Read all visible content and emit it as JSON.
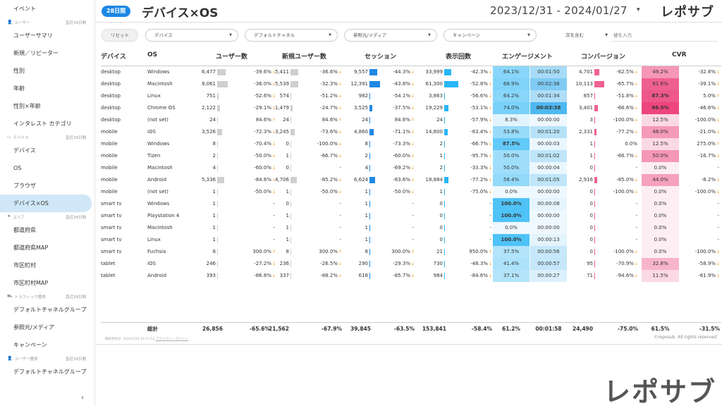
{
  "sidebar": {
    "items": [
      {
        "type": "item",
        "label": "イベント"
      },
      {
        "type": "group",
        "label": "ユーザー",
        "period": "直近28日間",
        "icon": "user-icon"
      },
      {
        "type": "item",
        "label": "ユーザーサマリ"
      },
      {
        "type": "item",
        "label": "新規／リピーター"
      },
      {
        "type": "item",
        "label": "性別"
      },
      {
        "type": "item",
        "label": "年齢"
      },
      {
        "type": "item",
        "label": "性別×年齢"
      },
      {
        "type": "item",
        "label": "インタレスト カテゴリ"
      },
      {
        "type": "group",
        "label": "デバイス",
        "period": "直近28日間",
        "icon": "monitor-icon"
      },
      {
        "type": "item",
        "label": "デバイス"
      },
      {
        "type": "item",
        "label": "OS"
      },
      {
        "type": "item",
        "label": "ブラウザ"
      },
      {
        "type": "item",
        "label": "デバイス×OS",
        "active": true
      },
      {
        "type": "group",
        "label": "エリア",
        "period": "直近28日間",
        "icon": "flag-icon"
      },
      {
        "type": "item",
        "label": "都道府県"
      },
      {
        "type": "item",
        "label": "都道府県MAP"
      },
      {
        "type": "item",
        "label": "市区町村"
      },
      {
        "type": "item",
        "label": "市区町村MAP"
      },
      {
        "type": "group",
        "label": "トラフィック獲得",
        "period": "直近28日間",
        "icon": "truck-icon"
      },
      {
        "type": "item",
        "label": "デフォルトチャネルグループ"
      },
      {
        "type": "item",
        "label": "参照元/メディア"
      },
      {
        "type": "item",
        "label": "キャンペーン"
      },
      {
        "type": "group",
        "label": "ユーザー獲得",
        "period": "直近28日間",
        "icon": "user-add-icon"
      },
      {
        "type": "item",
        "label": "デフォルトチャネルグループ"
      }
    ],
    "collapse_glyph": "‹"
  },
  "header": {
    "badge": "28日間",
    "title": "デバイス×OS",
    "date_range": "2023/12/31 - 2024/01/27",
    "date_caret": "▾",
    "logo": "レポサブ"
  },
  "filters": {
    "reset": "リセット",
    "dropdowns": [
      "デバイス",
      "デフォルトチャネル",
      "参照元/メディア",
      "キャンペーン"
    ],
    "contain": "次を含む",
    "input_placeholder": "値を入力"
  },
  "table": {
    "headers": [
      "デバイス",
      "OS",
      "ユーザー数",
      "新規ユーザー数",
      "セッション",
      "表示回数",
      "エンゲージメント",
      "コンバージョン",
      "CVR"
    ],
    "rows": [
      {
        "device": "desktop",
        "os": "Windows",
        "users": "6,477",
        "users_chg": "-39.6%",
        "new_users": "5,411",
        "new_chg": "-36.6%",
        "sessions": "9,557",
        "sess_chg": "-44.3%",
        "views": "33,999",
        "views_chg": "-42.3%",
        "eng_rate": "64.1%",
        "eng_time": "00:01:50",
        "conv": "4,701",
        "conv_chg": "-62.5%",
        "cvr": "49.2%",
        "cvr_chg": "-32.8%",
        "users_bar": 0.39,
        "new_bar": 0.35,
        "sess_bar": 0.4,
        "views_bar": 0.34,
        "conv_bar": 0.3,
        "eng_rate_lvl": 0.64,
        "eng_time_lvl": 0.45,
        "cvr_lvl": 0.5
      },
      {
        "device": "desktop",
        "os": "Macintosh",
        "users": "8,061",
        "users_chg": "-36.0%",
        "new_users": "5,539",
        "new_chg": "-32.3%",
        "sessions": "12,391",
        "sess_chg": "-43.8%",
        "views": "61,300",
        "views_chg": "-52.8%",
        "eng_rate": "68.9%",
        "eng_time": "00:02:36",
        "conv": "10,113",
        "conv_chg": "-65.7%",
        "cvr": "81.6%",
        "cvr_chg": "-39.1%",
        "users_bar": 0.5,
        "new_bar": 0.36,
        "sess_bar": 0.55,
        "views_bar": 0.7,
        "conv_bar": 0.65,
        "eng_rate_lvl": 0.69,
        "eng_time_lvl": 0.7,
        "cvr_lvl": 0.82
      },
      {
        "device": "desktop",
        "os": "Linux",
        "users": "751",
        "users_chg": "-52.6%",
        "new_users": "574",
        "new_chg": "-51.2%",
        "sessions": "982",
        "sess_chg": "-54.1%",
        "views": "3,863",
        "views_chg": "-56.6%",
        "eng_rate": "64.2%",
        "eng_time": "00:01:34",
        "conv": "857",
        "conv_chg": "-51.8%",
        "cvr": "87.3%",
        "cvr_chg": "5.0%",
        "users_bar": 0.05,
        "new_bar": 0.04,
        "sess_bar": 0.04,
        "views_bar": 0.04,
        "conv_bar": 0.05,
        "eng_rate_lvl": 0.64,
        "eng_time_lvl": 0.4,
        "cvr_lvl": 0.87
      },
      {
        "device": "desktop",
        "os": "Chrome OS",
        "users": "2,122",
        "users_chg": "-29.1%",
        "new_users": "1,479",
        "new_chg": "-24.7%",
        "sessions": "3,525",
        "sess_chg": "-37.5%",
        "views": "19,229",
        "views_chg": "-53.1%",
        "eng_rate": "74.0%",
        "eng_time": "00:03:38",
        "conv": "3,401",
        "conv_chg": "-66.6%",
        "cvr": "96.5%",
        "cvr_chg": "-46.6%",
        "users_bar": 0.13,
        "new_bar": 0.1,
        "sess_bar": 0.15,
        "views_bar": 0.22,
        "conv_bar": 0.22,
        "eng_rate_lvl": 0.74,
        "eng_time_lvl": 1.0,
        "cvr_lvl": 0.97
      },
      {
        "device": "desktop",
        "os": "(not set)",
        "users": "24",
        "users_chg": "84.6%",
        "new_users": "24",
        "new_chg": "84.6%",
        "sessions": "24",
        "sess_chg": "84.6%",
        "views": "24",
        "views_chg": "-57.9%",
        "eng_rate": "8.3%",
        "eng_time": "00:00:00",
        "conv": "3",
        "conv_chg": "-100.0%",
        "cvr": "12.5%",
        "cvr_chg": "-100.0%",
        "users_bar": 0.0,
        "new_bar": 0.0,
        "sess_bar": 0.0,
        "views_bar": 0.0,
        "conv_bar": 0.0,
        "eng_rate_lvl": 0.08,
        "eng_time_lvl": 0.0,
        "cvr_lvl": 0.12
      },
      {
        "device": "mobile",
        "os": "iOS",
        "users": "3,526",
        "users_chg": "-72.3%",
        "new_users": "3,245",
        "new_chg": "-73.6%",
        "sessions": "4,860",
        "sess_chg": "-71.1%",
        "views": "14,800",
        "views_chg": "-63.4%",
        "eng_rate": "53.8%",
        "eng_time": "00:01:20",
        "conv": "2,331",
        "conv_chg": "-77.2%",
        "cvr": "48.0%",
        "cvr_chg": "-21.0%",
        "users_bar": 0.22,
        "new_bar": 0.21,
        "sess_bar": 0.2,
        "views_bar": 0.17,
        "conv_bar": 0.15,
        "eng_rate_lvl": 0.54,
        "eng_time_lvl": 0.35,
        "cvr_lvl": 0.48
      },
      {
        "device": "mobile",
        "os": "Windows",
        "users": "8",
        "users_chg": "-70.4%",
        "new_users": "0",
        "new_chg": "-100.0%",
        "sessions": "8",
        "sess_chg": "-73.3%",
        "views": "2",
        "views_chg": "-66.7%",
        "eng_rate": "87.5%",
        "eng_time": "00:00:03",
        "conv": "1",
        "conv_chg": "0.0%",
        "cvr": "12.5%",
        "cvr_chg": "275.0%",
        "users_bar": 0.0,
        "new_bar": 0.0,
        "sess_bar": 0.0,
        "views_bar": 0.0,
        "conv_bar": 0.0,
        "eng_rate_lvl": 0.88,
        "eng_time_lvl": 0.02,
        "cvr_lvl": 0.12
      },
      {
        "device": "mobile",
        "os": "Tizen",
        "users": "2",
        "users_chg": "-50.0%",
        "new_users": "1",
        "new_chg": "-66.7%",
        "sessions": "2",
        "sess_chg": "-60.0%",
        "views": "1",
        "views_chg": "-95.7%",
        "eng_rate": "50.0%",
        "eng_time": "00:01:02",
        "conv": "1",
        "conv_chg": "-66.7%",
        "cvr": "50.0%",
        "cvr_chg": "-16.7%",
        "users_bar": 0.0,
        "new_bar": 0.0,
        "sess_bar": 0.0,
        "views_bar": 0.0,
        "conv_bar": 0.0,
        "eng_rate_lvl": 0.5,
        "eng_time_lvl": 0.3,
        "cvr_lvl": 0.5
      },
      {
        "device": "mobile",
        "os": "Macintosh",
        "users": "4",
        "users_chg": "-60.0%",
        "new_users": "0",
        "new_chg": "-",
        "sessions": "4",
        "sess_chg": "-69.2%",
        "views": "2",
        "views_chg": "-33.3%",
        "eng_rate": "50.0%",
        "eng_time": "00:00:04",
        "conv": "0",
        "conv_chg": "-",
        "cvr": "0.0%",
        "cvr_chg": "-",
        "users_bar": 0.0,
        "new_bar": 0.0,
        "sess_bar": 0.0,
        "views_bar": 0.0,
        "conv_bar": 0.0,
        "eng_rate_lvl": 0.5,
        "eng_time_lvl": 0.02,
        "cvr_lvl": 0.0
      },
      {
        "device": "mobile",
        "os": "Android",
        "users": "5,336",
        "users_chg": "-84.6%",
        "new_users": "4,706",
        "new_chg": "-85.2%",
        "sessions": "6,624",
        "sess_chg": "-83.6%",
        "views": "18,884",
        "views_chg": "-77.2%",
        "eng_rate": "58.4%",
        "eng_time": "00:01:05",
        "conv": "2,916",
        "conv_chg": "-85.0%",
        "cvr": "44.0%",
        "cvr_chg": "-8.2%",
        "users_bar": 0.33,
        "new_bar": 0.31,
        "sess_bar": 0.28,
        "views_bar": 0.2,
        "conv_bar": 0.19,
        "eng_rate_lvl": 0.58,
        "eng_time_lvl": 0.3,
        "cvr_lvl": 0.44
      },
      {
        "device": "mobile",
        "os": "(not set)",
        "users": "1",
        "users_chg": "-50.0%",
        "new_users": "1",
        "new_chg": "-50.0%",
        "sessions": "1",
        "sess_chg": "-50.0%",
        "views": "1",
        "views_chg": "-75.0%",
        "eng_rate": "0.0%",
        "eng_time": "00:00:00",
        "conv": "0",
        "conv_chg": "-100.0%",
        "cvr": "0.0%",
        "cvr_chg": "-100.0%",
        "users_bar": 0.0,
        "new_bar": 0.0,
        "sess_bar": 0.0,
        "views_bar": 0.0,
        "conv_bar": 0.0,
        "eng_rate_lvl": 0.0,
        "eng_time_lvl": 0.0,
        "cvr_lvl": 0.0
      },
      {
        "device": "smart tv",
        "os": "Windows",
        "users": "1",
        "users_chg": "-",
        "new_users": "0",
        "new_chg": "-",
        "sessions": "1",
        "sess_chg": "-",
        "views": "0",
        "views_chg": "-",
        "eng_rate": "100.0%",
        "eng_time": "00:00:08",
        "conv": "0",
        "conv_chg": "-",
        "cvr": "0.0%",
        "cvr_chg": "-",
        "users_bar": 0.0,
        "new_bar": 0.0,
        "sess_bar": 0.0,
        "views_bar": 0.0,
        "conv_bar": 0.0,
        "eng_rate_lvl": 1.0,
        "eng_time_lvl": 0.05,
        "cvr_lvl": 0.0
      },
      {
        "device": "smart tv",
        "os": "Playstation 4",
        "users": "1",
        "users_chg": "-",
        "new_users": "1",
        "new_chg": "-",
        "sessions": "1",
        "sess_chg": "-",
        "views": "0",
        "views_chg": "-",
        "eng_rate": "100.0%",
        "eng_time": "00:00:00",
        "conv": "0",
        "conv_chg": "-",
        "cvr": "0.0%",
        "cvr_chg": "-",
        "users_bar": 0.0,
        "new_bar": 0.0,
        "sess_bar": 0.0,
        "views_bar": 0.0,
        "conv_bar": 0.0,
        "eng_rate_lvl": 1.0,
        "eng_time_lvl": 0.0,
        "cvr_lvl": 0.0
      },
      {
        "device": "smart tv",
        "os": "Macintosh",
        "users": "1",
        "users_chg": "-",
        "new_users": "1",
        "new_chg": "-",
        "sessions": "1",
        "sess_chg": "-",
        "views": "0",
        "views_chg": "-",
        "eng_rate": "0.0%",
        "eng_time": "00:00:00",
        "conv": "0",
        "conv_chg": "-",
        "cvr": "0.0%",
        "cvr_chg": "-",
        "users_bar": 0.0,
        "new_bar": 0.0,
        "sess_bar": 0.0,
        "views_bar": 0.0,
        "conv_bar": 0.0,
        "eng_rate_lvl": 0.0,
        "eng_time_lvl": 0.0,
        "cvr_lvl": 0.0
      },
      {
        "device": "smart tv",
        "os": "Linux",
        "users": "1",
        "users_chg": "-",
        "new_users": "1",
        "new_chg": "-",
        "sessions": "1",
        "sess_chg": "-",
        "views": "0",
        "views_chg": "-",
        "eng_rate": "100.0%",
        "eng_time": "00:00:13",
        "conv": "0",
        "conv_chg": "-",
        "cvr": "0.0%",
        "cvr_chg": "-",
        "users_bar": 0.0,
        "new_bar": 0.0,
        "sess_bar": 0.0,
        "views_bar": 0.0,
        "conv_bar": 0.0,
        "eng_rate_lvl": 1.0,
        "eng_time_lvl": 0.07,
        "cvr_lvl": 0.0
      },
      {
        "device": "smart tv",
        "os": "Fuchsia",
        "users": "8",
        "users_chg": "300.0%",
        "new_users": "8",
        "new_chg": "300.0%",
        "sessions": "8",
        "sess_chg": "300.0%",
        "views": "21",
        "views_chg": "950.0%",
        "eng_rate": "37.5%",
        "eng_time": "00:00:56",
        "conv": "0",
        "conv_chg": "-100.0%",
        "cvr": "0.0%",
        "cvr_chg": "-100.0%",
        "users_bar": 0.0,
        "new_bar": 0.0,
        "sess_bar": 0.0,
        "views_bar": 0.0,
        "conv_bar": 0.0,
        "eng_rate_lvl": 0.38,
        "eng_time_lvl": 0.25,
        "cvr_lvl": 0.0
      },
      {
        "device": "tablet",
        "os": "iOS",
        "users": "246",
        "users_chg": "-27.2%",
        "new_users": "236",
        "new_chg": "-26.5%",
        "sessions": "290",
        "sess_chg": "-29.3%",
        "views": "730",
        "views_chg": "-48.3%",
        "eng_rate": "41.4%",
        "eng_time": "00:00:57",
        "conv": "95",
        "conv_chg": "-70.9%",
        "cvr": "32.8%",
        "cvr_chg": "-58.9%",
        "users_bar": 0.02,
        "new_bar": 0.02,
        "sess_bar": 0.01,
        "views_bar": 0.01,
        "conv_bar": 0.0,
        "eng_rate_lvl": 0.41,
        "eng_time_lvl": 0.26,
        "cvr_lvl": 0.33
      },
      {
        "device": "tablet",
        "os": "Android",
        "users": "393",
        "users_chg": "-86.8%",
        "new_users": "337",
        "new_chg": "-88.2%",
        "sessions": "618",
        "sess_chg": "-85.7%",
        "views": "984",
        "views_chg": "-84.6%",
        "eng_rate": "37.1%",
        "eng_time": "00:00:27",
        "conv": "71",
        "conv_chg": "-94.6%",
        "cvr": "11.5%",
        "cvr_chg": "-61.9%",
        "users_bar": 0.02,
        "new_bar": 0.02,
        "sess_bar": 0.02,
        "views_bar": 0.01,
        "conv_bar": 0.0,
        "eng_rate_lvl": 0.37,
        "eng_time_lvl": 0.12,
        "cvr_lvl": 0.12
      }
    ],
    "total": {
      "label": "総計",
      "users": "26,856",
      "users_chg": "-65.6%",
      "new_users": "21,562",
      "new_chg": "-67.9%",
      "sessions": "39,845",
      "sess_chg": "-63.5%",
      "views": "153,841",
      "views_chg": "-58.4%",
      "eng_rate": "61.2%",
      "eng_time": "00:01:58",
      "conv": "24,490",
      "conv_chg": "-75.0%",
      "cvr": "61.5%",
      "cvr_chg": "-31.5%"
    }
  },
  "footer": {
    "updated": "最終更新日: 2024/1/29 15:17:53",
    "privacy": "プライバシー ポリシー",
    "copyright": "©reposub. All rights reserved."
  },
  "brand_logo": "レポサブ",
  "colors": {
    "accent": "#1e88e5",
    "engagement": "#29b6f6",
    "cvr": "#e91e63",
    "arrow": "#f39c12"
  }
}
